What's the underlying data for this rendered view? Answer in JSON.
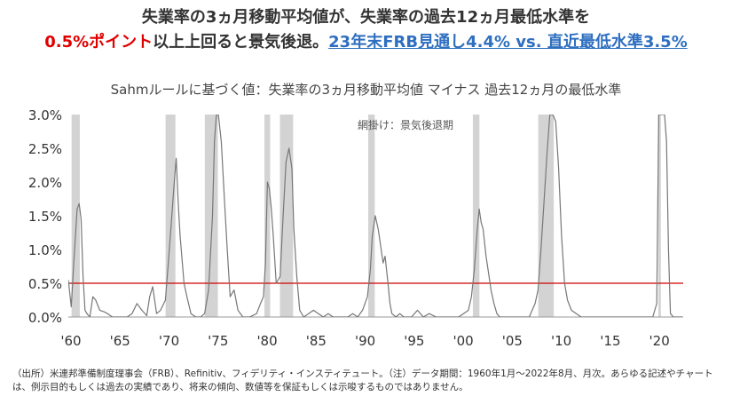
{
  "header": {
    "line1": "失業率の3ヵ月移動平均値が、失業率の過去12ヵ月最低水準を",
    "line2_red": "0.5%ポイント",
    "line2_plain": "以上上回ると景気後退。",
    "line2_link": "23年末FRB見通し4.4% vs. 直近最低水準3.5%"
  },
  "chart_data": {
    "type": "line",
    "title": "Sahmルールに基づく値：失業率の3ヵ月移動平均値 マイナス 過去12ヵ月の最低水準",
    "annotation": "網掛け：景気後退期",
    "ylim": [
      0,
      3.0
    ],
    "xlim": [
      1960,
      2022.7
    ],
    "y_ticks": [
      "0.0%",
      "0.5%",
      "1.0%",
      "1.5%",
      "2.0%",
      "2.5%",
      "3.0%"
    ],
    "x_ticks": [
      "'60",
      "'65",
      "'70",
      "'75",
      "'80",
      "'85",
      "'90",
      "'95",
      "'00",
      "'05",
      "'10",
      "'15",
      "'20"
    ],
    "threshold": 0.5,
    "colors": {
      "line": "#777777",
      "threshold": "#d00000",
      "recession": "#d3d3d3"
    },
    "recessions": [
      [
        1960.33,
        1961.17
      ],
      [
        1969.92,
        1970.92
      ],
      [
        1973.92,
        1975.25
      ],
      [
        1980.0,
        1980.58
      ],
      [
        1981.58,
        1982.92
      ],
      [
        1990.58,
        1991.25
      ],
      [
        2001.25,
        2001.92
      ],
      [
        2007.92,
        2009.5
      ],
      [
        2020.17,
        2020.42
      ]
    ],
    "series": [
      {
        "x": [
          1960.0,
          1960.3,
          1960.6,
          1960.9,
          1961.1,
          1961.3,
          1961.5,
          1961.7,
          1961.9,
          1962.2,
          1962.5,
          1962.8,
          1963.2,
          1963.6,
          1964.0,
          1964.5,
          1965.0,
          1965.5,
          1966.0,
          1966.5,
          1967.0,
          1967.5,
          1968.0,
          1968.3,
          1968.6,
          1969.0,
          1969.4,
          1969.9,
          1970.2,
          1970.5,
          1970.8,
          1971.0,
          1971.2,
          1971.4,
          1971.6,
          1971.8,
          1972.1,
          1972.5,
          1973.0,
          1973.5,
          1973.9,
          1974.3,
          1974.7,
          1974.9,
          1975.1,
          1975.3,
          1975.6,
          1975.9,
          1976.2,
          1976.5,
          1976.9,
          1977.3,
          1977.8,
          1978.5,
          1979.2,
          1979.6,
          1979.9,
          1980.1,
          1980.3,
          1980.5,
          1980.7,
          1980.9,
          1981.2,
          1981.6,
          1981.9,
          1982.2,
          1982.5,
          1982.8,
          1983.0,
          1983.3,
          1983.6,
          1984.0,
          1984.5,
          1985.0,
          1985.5,
          1986.0,
          1986.5,
          1987.0,
          1987.5,
          1988.0,
          1988.5,
          1989.0,
          1989.5,
          1990.0,
          1990.5,
          1990.8,
          1991.0,
          1991.3,
          1991.6,
          1991.9,
          1992.1,
          1992.3,
          1992.6,
          1992.8,
          1993.0,
          1993.4,
          1993.8,
          1994.2,
          1995.0,
          1995.6,
          1996.2,
          1996.8,
          1997.5,
          1998.2,
          1999.0,
          1999.8,
          2000.3,
          2000.8,
          2001.1,
          2001.4,
          2001.7,
          2001.9,
          2002.1,
          2002.3,
          2002.6,
          2002.9,
          2003.1,
          2003.4,
          2003.7,
          2004.0,
          2004.5,
          2005.0,
          2005.5,
          2006.0,
          2006.5,
          2007.0,
          2007.3,
          2007.6,
          2007.9,
          2008.2,
          2008.5,
          2008.8,
          2009.1,
          2009.4,
          2009.7,
          2010.0,
          2010.3,
          2010.6,
          2010.9,
          2011.3,
          2011.8,
          2012.3,
          2013.0,
          2014.0,
          2015.0,
          2016.0,
          2017.0,
          2018.0,
          2019.0,
          2019.6,
          2020.0,
          2020.2,
          2020.3,
          2020.4,
          2020.6,
          2020.8,
          2021.0,
          2021.2,
          2021.4,
          2021.7,
          2022.0,
          2022.3,
          2022.6
        ],
        "y": [
          0.55,
          0.15,
          0.9,
          1.6,
          1.68,
          1.45,
          0.6,
          0.1,
          0.05,
          0.0,
          0.3,
          0.25,
          0.1,
          0.08,
          0.05,
          0.0,
          0.0,
          0.0,
          0.0,
          0.05,
          0.2,
          0.1,
          0.02,
          0.3,
          0.45,
          0.05,
          0.1,
          0.25,
          0.8,
          1.4,
          2.0,
          2.35,
          1.7,
          1.2,
          0.85,
          0.5,
          0.3,
          0.05,
          0.0,
          0.0,
          0.05,
          0.4,
          1.5,
          2.6,
          3.0,
          3.0,
          2.6,
          1.8,
          1.0,
          0.3,
          0.4,
          0.1,
          0.0,
          0.0,
          0.05,
          0.2,
          0.3,
          0.8,
          2.0,
          1.9,
          1.6,
          1.2,
          0.5,
          0.6,
          1.5,
          2.3,
          2.5,
          2.2,
          1.3,
          0.6,
          0.1,
          0.0,
          0.05,
          0.1,
          0.05,
          0.0,
          0.05,
          0.0,
          0.0,
          0.0,
          0.0,
          0.05,
          0.0,
          0.1,
          0.3,
          0.7,
          1.2,
          1.5,
          1.3,
          1.0,
          0.8,
          0.9,
          0.5,
          0.2,
          0.05,
          0.0,
          0.05,
          0.0,
          0.0,
          0.1,
          0.0,
          0.05,
          0.0,
          0.0,
          0.0,
          0.0,
          0.05,
          0.1,
          0.3,
          0.7,
          1.3,
          1.6,
          1.4,
          1.3,
          0.9,
          0.6,
          0.4,
          0.2,
          0.05,
          0.0,
          0.0,
          0.0,
          0.0,
          0.0,
          0.0,
          0.0,
          0.1,
          0.2,
          0.4,
          1.0,
          1.7,
          2.4,
          3.0,
          3.0,
          2.9,
          2.2,
          1.2,
          0.5,
          0.25,
          0.1,
          0.05,
          0.0,
          0.0,
          0.0,
          0.0,
          0.0,
          0.0,
          0.0,
          0.0,
          0.0,
          0.2,
          3.0,
          3.0,
          3.0,
          3.0,
          3.0,
          2.6,
          1.0,
          0.05,
          0.0,
          0.0,
          0.0,
          0.0
        ]
      }
    ]
  },
  "footnote": "（出所）米連邦準備制度理事会（FRB）、Refinitiv、フィデリティ・インスティテュート。（注）データ期間：1960年1月～2022年8月、月次。あらゆる記述やチャートは、例示目的もしくは過去の実績であり、将来の傾向、数値等を保証もしくは示唆するものではありません。"
}
